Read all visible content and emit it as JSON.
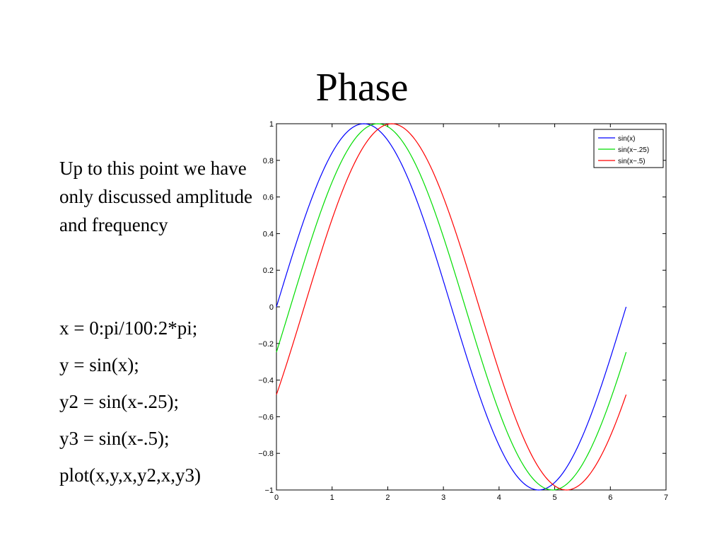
{
  "slide": {
    "title": "Phase",
    "intro_text": "Up to this point we have only discussed amplitude and frequency",
    "code_lines": [
      "x = 0:pi/100:2*pi;",
      "y = sin(x);",
      "y2 = sin(x-.25);",
      "y3 = sin(x-.5);",
      "plot(x,y,x,y2,x,y3)"
    ]
  },
  "chart_data": {
    "type": "line",
    "title": "",
    "xlabel": "",
    "ylabel": "",
    "xlim": [
      0,
      7
    ],
    "ylim": [
      -1,
      1
    ],
    "xticks": [
      0,
      1,
      2,
      3,
      4,
      5,
      6,
      7
    ],
    "yticks": [
      -1,
      -0.8,
      -0.6,
      -0.4,
      -0.2,
      0,
      0.2,
      0.4,
      0.6,
      0.8,
      1
    ],
    "xtick_labels": [
      "0",
      "1",
      "2",
      "3",
      "4",
      "5",
      "6",
      "7"
    ],
    "ytick_labels": [
      "−1",
      "−0.8",
      "−0.6",
      "−0.4",
      "−0.2",
      "0",
      "0.2",
      "0.4",
      "0.6",
      "0.8",
      "1"
    ],
    "grid": false,
    "legend_position": "top-right",
    "x_domain": [
      0,
      6.2832
    ],
    "x_step": 0.031416,
    "series": [
      {
        "name": "sin(x)",
        "function": "sin(x)",
        "phase_shift": 0,
        "color": "#0000ff"
      },
      {
        "name": "sin(x−.25)",
        "function": "sin(x-.25)",
        "phase_shift": 0.25,
        "color": "#00dd00"
      },
      {
        "name": "sin(x−.5)",
        "function": "sin(x-.5)",
        "phase_shift": 0.5,
        "color": "#ff0000"
      }
    ]
  }
}
